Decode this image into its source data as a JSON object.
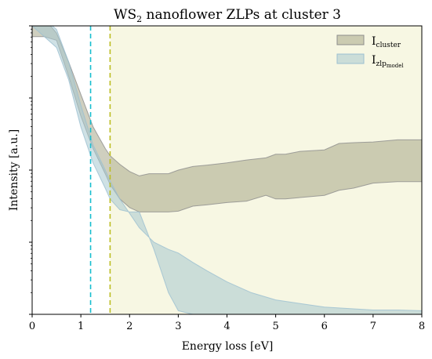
{
  "chart_data": {
    "type": "area",
    "title": "WS",
    "title_sub": "2",
    "title_rest": " nanoflower  ZLPs at cluster 3",
    "xlabel": "Energy loss [eV]",
    "ylabel": "Intensity [a.u.]",
    "xlim": [
      0,
      8
    ],
    "ylog10": [
      0,
      4
    ],
    "xticks": [
      "0",
      "1",
      "2",
      "3",
      "4",
      "5",
      "6",
      "7",
      "8"
    ],
    "legend_position": "top-right",
    "shaded_region": {
      "x_start": 1.6,
      "x_end": 8,
      "color": "#f5f5dc"
    },
    "vlines": [
      {
        "x": 1.2,
        "color": "#17becf",
        "style": "dashed"
      },
      {
        "x": 1.6,
        "color": "#bcbd22",
        "style": "dashed"
      }
    ],
    "series": [
      {
        "name_main": "I",
        "name_sub": "cluster",
        "fill": "#a0a080",
        "fill_opacity": 0.5,
        "stroke": "#8c8c8c",
        "x": [
          0,
          0.25,
          0.5,
          0.75,
          1,
          1.25,
          1.5,
          1.6,
          1.8,
          2,
          2.2,
          2.4,
          2.6,
          2.8,
          3,
          3.3,
          3.6,
          4,
          4.4,
          4.8,
          5,
          5.2,
          5.5,
          6,
          6.3,
          6.6,
          7,
          7.5,
          8
        ],
        "upper_log10": [
          4.1,
          4.1,
          3.9,
          3.5,
          3.05,
          2.6,
          2.3,
          2.2,
          2.08,
          1.98,
          1.92,
          1.95,
          1.95,
          1.95,
          2.0,
          2.05,
          2.07,
          2.1,
          2.14,
          2.17,
          2.22,
          2.22,
          2.26,
          2.28,
          2.37,
          2.38,
          2.39,
          2.42,
          2.42
        ],
        "lower_log10": [
          3.85,
          3.85,
          3.8,
          3.3,
          2.75,
          2.3,
          1.95,
          1.8,
          1.6,
          1.48,
          1.42,
          1.42,
          1.42,
          1.42,
          1.43,
          1.5,
          1.52,
          1.55,
          1.57,
          1.65,
          1.6,
          1.6,
          1.62,
          1.65,
          1.72,
          1.75,
          1.82,
          1.84,
          1.84
        ]
      },
      {
        "name_main": "I",
        "name_sub": "zlp",
        "name_subsub": "model",
        "fill": "#a8c8cf",
        "fill_opacity": 0.55,
        "stroke": "#9bbfd1",
        "x": [
          0,
          0.25,
          0.5,
          0.75,
          1,
          1.25,
          1.5,
          1.6,
          1.8,
          2,
          2.2,
          2.5,
          2.8,
          3,
          3.3,
          3.6,
          4,
          4.5,
          5,
          5.5,
          6,
          6.5,
          7,
          7.5,
          8
        ],
        "upper_log10": [
          4.2,
          4.1,
          3.95,
          3.5,
          2.9,
          2.35,
          2.0,
          1.85,
          1.6,
          1.4,
          1.2,
          1.0,
          0.9,
          0.85,
          0.72,
          0.6,
          0.45,
          0.3,
          0.2,
          0.15,
          0.1,
          0.08,
          0.06,
          0.06,
          0.05
        ],
        "lower_log10": [
          4.0,
          3.85,
          3.7,
          3.25,
          2.6,
          2.1,
          1.75,
          1.6,
          1.45,
          1.42,
          1.42,
          0.9,
          0.3,
          0.05,
          0,
          0,
          0,
          0,
          0,
          0,
          0,
          0,
          0,
          0,
          0
        ]
      }
    ]
  }
}
